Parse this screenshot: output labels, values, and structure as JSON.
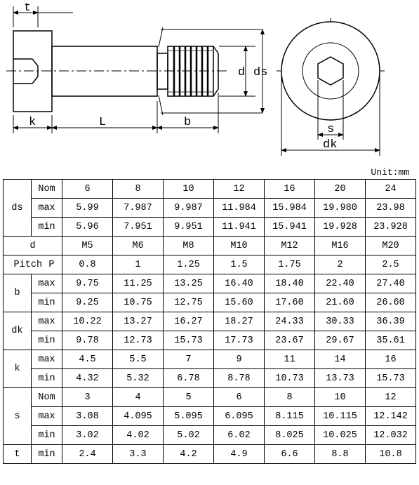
{
  "dimension_labels": {
    "t": "t",
    "k": "k",
    "L": "L",
    "b": "b",
    "d": "d",
    "ds": "ds",
    "s": "s",
    "dk": "dk"
  },
  "unit_label": "Unit:mm",
  "table": {
    "param_labels": [
      "ds",
      "d",
      "Pitch",
      "b",
      "dk",
      "k",
      "s",
      "t"
    ],
    "sub_labels": {
      "nom": "Nom",
      "max": "max",
      "min": "min",
      "p": "P"
    },
    "rows": [
      {
        "label": "ds",
        "subs": [
          {
            "sub": "Nom",
            "vals": [
              "6",
              "8",
              "10",
              "12",
              "16",
              "20",
              "24"
            ]
          },
          {
            "sub": "max",
            "vals": [
              "5.99",
              "7.987",
              "9.987",
              "11.984",
              "15.984",
              "19.980",
              "23.98"
            ]
          },
          {
            "sub": "min",
            "vals": [
              "5.96",
              "7.951",
              "9.951",
              "11.941",
              "15.941",
              "19.928",
              "23.928"
            ]
          }
        ]
      },
      {
        "label": "d",
        "subs": [
          {
            "sub": "",
            "vals": [
              "M5",
              "M6",
              "M8",
              "M10",
              "M12",
              "M16",
              "M20"
            ],
            "span": 2
          }
        ]
      },
      {
        "label": "Pitch",
        "subs": [
          {
            "sub": "P",
            "vals": [
              "0.8",
              "1",
              "1.25",
              "1.5",
              "1.75",
              "2",
              "2.5"
            ],
            "pitch": true
          }
        ]
      },
      {
        "label": "b",
        "subs": [
          {
            "sub": "max",
            "vals": [
              "9.75",
              "11.25",
              "13.25",
              "16.40",
              "18.40",
              "22.40",
              "27.40"
            ]
          },
          {
            "sub": "min",
            "vals": [
              "9.25",
              "10.75",
              "12.75",
              "15.60",
              "17.60",
              "21.60",
              "26.60"
            ]
          }
        ]
      },
      {
        "label": "dk",
        "subs": [
          {
            "sub": "max",
            "vals": [
              "10.22",
              "13.27",
              "16.27",
              "18.27",
              "24.33",
              "30.33",
              "36.39"
            ]
          },
          {
            "sub": "min",
            "vals": [
              "9.78",
              "12.73",
              "15.73",
              "17.73",
              "23.67",
              "29.67",
              "35.61"
            ]
          }
        ]
      },
      {
        "label": "k",
        "subs": [
          {
            "sub": "max",
            "vals": [
              "4.5",
              "5.5",
              "7",
              "9",
              "11",
              "14",
              "16"
            ]
          },
          {
            "sub": "min",
            "vals": [
              "4.32",
              "5.32",
              "6.78",
              "8.78",
              "10.73",
              "13.73",
              "15.73"
            ]
          }
        ]
      },
      {
        "label": "s",
        "subs": [
          {
            "sub": "Nom",
            "vals": [
              "3",
              "4",
              "5",
              "6",
              "8",
              "10",
              "12"
            ]
          },
          {
            "sub": "max",
            "vals": [
              "3.08",
              "4.095",
              "5.095",
              "6.095",
              "8.115",
              "10.115",
              "12.142"
            ]
          },
          {
            "sub": "min",
            "vals": [
              "3.02",
              "4.02",
              "5.02",
              "6.02",
              "8.025",
              "10.025",
              "12.032"
            ]
          }
        ]
      },
      {
        "label": "t",
        "subs": [
          {
            "sub": "min",
            "vals": [
              "2.4",
              "3.3",
              "4.2",
              "4.9",
              "6.6",
              "8.8",
              "10.8"
            ]
          }
        ]
      }
    ]
  }
}
